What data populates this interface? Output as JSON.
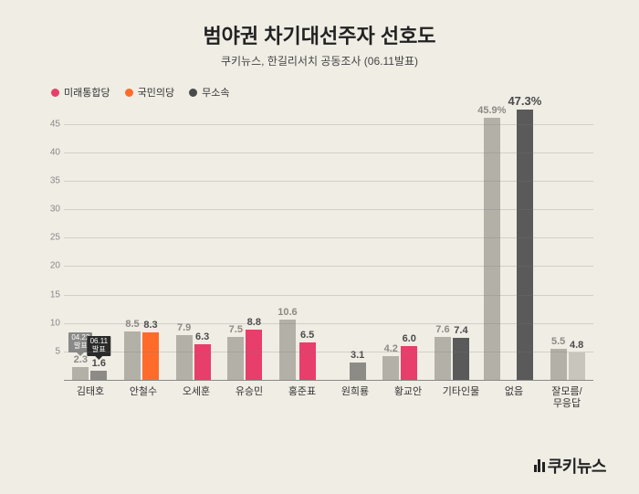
{
  "title": "범야권 차기대선주자 선호도",
  "title_fontsize": 22,
  "subtitle": "쿠키뉴스, 한길리서치 공동조사 (06.11발표)",
  "subtitle_fontsize": 12,
  "legend": [
    {
      "label": "미래통합당",
      "color": "#e83e6b"
    },
    {
      "label": "국민의당",
      "color": "#ff6b2b"
    },
    {
      "label": "무소속",
      "color": "#4a4a4a"
    }
  ],
  "background_color": "#f0ede5",
  "axis": {
    "ylim_max": 48,
    "yticks": [
      5,
      10,
      15,
      20,
      25,
      30,
      35,
      40,
      45
    ],
    "grid_color": "rgba(120,120,120,0.25)"
  },
  "bar_colors": {
    "neutral": "#b3b0a8",
    "pink": "#e83e6b",
    "orange": "#ff6b2b",
    "dark": "#5a5a5a",
    "light_neutral": "#c8c5bd"
  },
  "tags": {
    "left": {
      "text": "04.22\n발표",
      "bg": "#8a8a88"
    },
    "right": {
      "text": "06.11\n발표",
      "bg": "#2a2a2a"
    }
  },
  "value_label_color_dark": "#4a4a4a",
  "value_label_color_light": "#8c8a84",
  "highlight_label_weight": 900,
  "categories": [
    {
      "name": "김태호",
      "bars": [
        {
          "value": 2.3,
          "kind": "neutral",
          "tag": "left"
        },
        {
          "value": 1.6,
          "kind": "hatched_dark",
          "tag": "right",
          "label_color": "dark"
        }
      ]
    },
    {
      "name": "안철수",
      "bars": [
        {
          "value": 8.5,
          "kind": "neutral"
        },
        {
          "value": 8.3,
          "kind": "orange",
          "label_color": "dark"
        }
      ]
    },
    {
      "name": "오세훈",
      "bars": [
        {
          "value": 7.9,
          "kind": "neutral"
        },
        {
          "value": 6.3,
          "kind": "pink",
          "label_color": "dark"
        }
      ]
    },
    {
      "name": "유승민",
      "bars": [
        {
          "value": 7.5,
          "kind": "neutral"
        },
        {
          "value": 8.8,
          "kind": "pink",
          "label_color": "dark"
        }
      ]
    },
    {
      "name": "홍준표",
      "bars": [
        {
          "value": 10.6,
          "kind": "neutral"
        },
        {
          "value": 6.5,
          "kind": "pink",
          "label_color": "dark"
        }
      ]
    },
    {
      "name": "원희룡",
      "bars": [
        {
          "value": null,
          "kind": "none"
        },
        {
          "value": 3.1,
          "kind": "hatched_dark",
          "label_color": "dark"
        }
      ]
    },
    {
      "name": "황교안",
      "bars": [
        {
          "value": 4.2,
          "kind": "neutral"
        },
        {
          "value": 6.0,
          "kind": "pink",
          "label_color": "dark",
          "decimals": 1
        }
      ]
    },
    {
      "name": "기타인물",
      "bars": [
        {
          "value": 7.6,
          "kind": "neutral"
        },
        {
          "value": 7.4,
          "kind": "dark",
          "label_color": "dark"
        }
      ]
    },
    {
      "name": "없음",
      "bars": [
        {
          "value": 45.9,
          "kind": "neutral",
          "label_suffix": "%"
        },
        {
          "value": 47.3,
          "kind": "dark",
          "label_color": "dark",
          "label_suffix": "%",
          "highlight": true
        }
      ]
    },
    {
      "name": "잘모름/\n무응답",
      "bars": [
        {
          "value": 5.5,
          "kind": "neutral"
        },
        {
          "value": 4.8,
          "kind": "light_neutral",
          "label_color": "dark"
        }
      ]
    }
  ],
  "watermark": "쿠키뉴스"
}
